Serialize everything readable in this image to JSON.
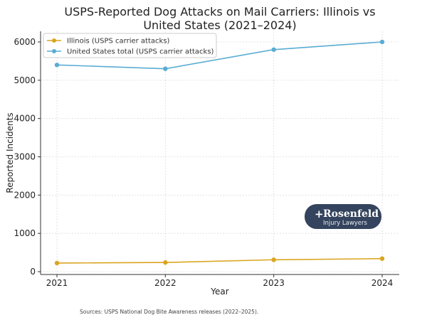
{
  "chart_data": {
    "type": "line",
    "title": "USPS-Reported Dog Attacks on Mail Carriers: Illinois vs United States (2021–2024)",
    "title_lines": [
      "USPS-Reported Dog Attacks on Mail Carriers: Illinois vs",
      "United States (2021–2024)"
    ],
    "xlabel": "Year",
    "ylabel": "Reported Incidents",
    "x": [
      "2021",
      "2022",
      "2023",
      "2024"
    ],
    "yticks": [
      0,
      1000,
      2000,
      3000,
      4000,
      5000,
      6000
    ],
    "ylim": [
      -200,
      6300
    ],
    "grid": true,
    "legend_position": "top-left",
    "series": [
      {
        "name": "Illinois (USPS carrier attacks)",
        "values": [
          225,
          240,
          310,
          340
        ],
        "color": "#DAA520"
      },
      {
        "name": "United States total (USPS carrier attacks)",
        "values": [
          5400,
          5300,
          5800,
          6000
        ],
        "color": "#5AACD3"
      }
    ],
    "annotation": "Sources: USPS National Dog Bite Awareness releases (2022–2025)."
  },
  "logo": {
    "name": "Rosenfeld",
    "subtitle": "Injury Lawyers",
    "color": "#34435E"
  }
}
